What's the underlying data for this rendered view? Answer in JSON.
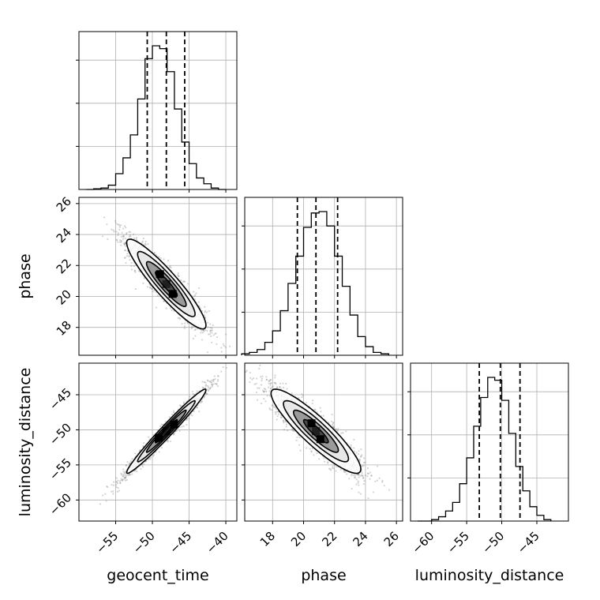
{
  "chart_data": {
    "type": "corner",
    "parameters": [
      "geocent_time",
      "phase",
      "luminosity_distance"
    ],
    "axis_labels": {
      "geocent_time": "geocent_time",
      "phase": "phase",
      "luminosity_distance": "luminosity_distance"
    },
    "ranges": {
      "geocent_time": [
        -60,
        -38.5
      ],
      "phase": [
        16.2,
        26.4
      ],
      "luminosity_distance": [
        -63,
        -40.5
      ]
    },
    "ticks": {
      "geocent_time": [
        -55,
        -50,
        -45,
        -40
      ],
      "phase": [
        18,
        20,
        22,
        24,
        26
      ],
      "luminosity_distance": [
        -60,
        -55,
        -50,
        -45
      ]
    },
    "grid": true,
    "quantiles": {
      "geocent_time": [
        -50.7,
        -48.1,
        -45.6
      ],
      "phase": [
        19.6,
        20.8,
        22.2
      ],
      "luminosity_distance": [
        -53.2,
        -50.2,
        -47.4
      ]
    },
    "histograms": {
      "geocent_time": {
        "bin_edges": [
          -59,
          -58,
          -57,
          -56,
          -55,
          -54,
          -53,
          -52,
          -51,
          -50,
          -49,
          -48,
          -47,
          -46,
          -45,
          -44,
          -43,
          -42,
          -41,
          -40
        ],
        "density": [
          0.0,
          0.005,
          0.01,
          0.03,
          0.11,
          0.22,
          0.38,
          0.63,
          0.91,
          1.0,
          0.98,
          0.82,
          0.56,
          0.33,
          0.18,
          0.08,
          0.04,
          0.01,
          0.0
        ]
      },
      "phase": {
        "bin_edges": [
          16.0,
          16.5,
          17.0,
          17.5,
          18.0,
          18.5,
          19.0,
          19.5,
          20.0,
          20.5,
          21.0,
          21.5,
          22.0,
          22.5,
          23.0,
          23.5,
          24.0,
          24.5,
          25.0,
          25.5
        ],
        "density": [
          0.01,
          0.02,
          0.04,
          0.09,
          0.17,
          0.31,
          0.5,
          0.69,
          0.89,
          0.99,
          1.0,
          0.9,
          0.69,
          0.48,
          0.28,
          0.13,
          0.06,
          0.02,
          0.01
        ]
      },
      "luminosity_distance": {
        "bin_edges": [
          -62,
          -61,
          -60,
          -59,
          -58,
          -57,
          -56,
          -55,
          -54,
          -53,
          -52,
          -51,
          -50,
          -49,
          -48,
          -47,
          -46,
          -45,
          -44,
          -43
        ],
        "density": [
          0.0,
          0.0,
          0.01,
          0.03,
          0.07,
          0.13,
          0.26,
          0.44,
          0.66,
          0.86,
          1.0,
          0.98,
          0.84,
          0.61,
          0.38,
          0.21,
          0.1,
          0.04,
          0.01
        ]
      }
    },
    "correlations": {
      "geocent_time__phase": -0.92,
      "geocent_time__luminosity_distance": 0.98,
      "phase__luminosity_distance": -0.9
    },
    "stdevs": {
      "geocent_time": 2.7,
      "phase": 1.45,
      "luminosity_distance": 3.0
    },
    "sample_color": "#808080",
    "contour_color": "#000000"
  }
}
